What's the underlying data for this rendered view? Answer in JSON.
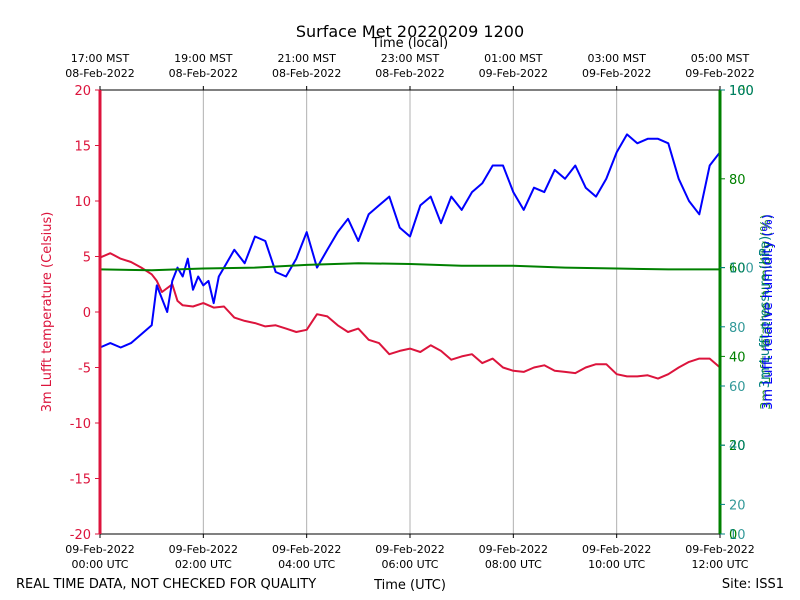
{
  "chart_data": {
    "type": "line",
    "title": "Surface Met 20220209 1200",
    "top_axis_label": "Time (local)",
    "xlabel": "Time (UTC)",
    "footer_left": "REAL TIME DATA, NOT CHECKED FOR QUALITY",
    "footer_right": "Site: ISS1",
    "x_range_hours_utc": [
      0,
      12
    ],
    "bottom_ticks": [
      {
        "hour": 0,
        "line1": "09-Feb-2022",
        "line2": "00:00 UTC"
      },
      {
        "hour": 2,
        "line1": "09-Feb-2022",
        "line2": "02:00 UTC"
      },
      {
        "hour": 4,
        "line1": "09-Feb-2022",
        "line2": "04:00 UTC"
      },
      {
        "hour": 6,
        "line1": "09-Feb-2022",
        "line2": "06:00 UTC"
      },
      {
        "hour": 8,
        "line1": "09-Feb-2022",
        "line2": "08:00 UTC"
      },
      {
        "hour": 10,
        "line1": "09-Feb-2022",
        "line2": "10:00 UTC"
      },
      {
        "hour": 12,
        "line1": "09-Feb-2022",
        "line2": "12:00 UTC"
      }
    ],
    "top_ticks": [
      {
        "hour": 0,
        "line1": "17:00 MST",
        "line2": "08-Feb-2022"
      },
      {
        "hour": 2,
        "line1": "19:00 MST",
        "line2": "08-Feb-2022"
      },
      {
        "hour": 4,
        "line1": "21:00 MST",
        "line2": "08-Feb-2022"
      },
      {
        "hour": 6,
        "line1": "23:00 MST",
        "line2": "08-Feb-2022"
      },
      {
        "hour": 8,
        "line1": "01:00 MST",
        "line2": "09-Feb-2022"
      },
      {
        "hour": 10,
        "line1": "03:00 MST",
        "line2": "09-Feb-2022"
      },
      {
        "hour": 12,
        "line1": "05:00 MST",
        "line2": "09-Feb-2022"
      }
    ],
    "grid": true,
    "y_left": {
      "label": "3m Lufft temperature (Celsius)",
      "color": "#dc143c",
      "range": [
        -20,
        20
      ],
      "ticks": [
        -20,
        -15,
        -10,
        -5,
        0,
        5,
        10,
        15,
        20
      ]
    },
    "y_right_green": {
      "color": "#008000",
      "range": [
        0,
        100
      ],
      "ticks": [
        0,
        20,
        40,
        60,
        80,
        100
      ],
      "label": "3m Lufft relative humidity (%)"
    },
    "y_right_teal": {
      "color": "#008080",
      "range": [
        10,
        160
      ],
      "ticks": [
        10,
        20,
        40,
        60,
        80,
        100,
        160
      ],
      "label": "3m Lufft pressure (hPa)"
    },
    "y_right_blue": {
      "color": "#0000ff",
      "range": [
        0,
        100
      ],
      "label": "3m Lufft relative humidity (%)"
    },
    "series": [
      {
        "color": "#dc143c",
        "axis": "left",
        "x": [
          0,
          0.2,
          0.4,
          0.6,
          0.8,
          1.0,
          1.1,
          1.2,
          1.4,
          1.5,
          1.6,
          1.8,
          2.0,
          2.2,
          2.4,
          2.6,
          2.8,
          3.0,
          3.2,
          3.4,
          3.6,
          3.8,
          4.0,
          4.2,
          4.4,
          4.6,
          4.8,
          5.0,
          5.2,
          5.4,
          5.6,
          5.8,
          6.0,
          6.2,
          6.4,
          6.6,
          6.8,
          7.0,
          7.2,
          7.4,
          7.6,
          7.8,
          8.0,
          8.2,
          8.4,
          8.6,
          8.8,
          9.0,
          9.2,
          9.4,
          9.6,
          9.8,
          10.0,
          10.2,
          10.4,
          10.6,
          10.8,
          11.0,
          11.2,
          11.4,
          11.6,
          11.8,
          12.0
        ],
        "y": [
          4.9,
          5.3,
          4.8,
          4.5,
          4.0,
          3.4,
          2.8,
          1.8,
          2.5,
          1.0,
          0.6,
          0.5,
          0.8,
          0.4,
          0.5,
          -0.5,
          -0.8,
          -1.0,
          -1.3,
          -1.2,
          -1.5,
          -1.8,
          -1.6,
          -0.2,
          -0.4,
          -1.2,
          -1.8,
          -1.5,
          -2.5,
          -2.8,
          -3.8,
          -3.5,
          -3.3,
          -3.6,
          -3.0,
          -3.5,
          -4.3,
          -4.0,
          -3.8,
          -4.6,
          -4.2,
          -5.0,
          -5.3,
          -5.4,
          -5.0,
          -4.8,
          -5.3,
          -5.4,
          -5.5,
          -5.0,
          -4.7,
          -4.7,
          -5.6,
          -5.8,
          -5.8,
          -5.7,
          -6.0,
          -5.6,
          -5.0,
          -4.5,
          -4.2,
          -4.2,
          -5.0
        ]
      },
      {
        "color": "#0000ff",
        "axis": "right_blue",
        "x": [
          0,
          0.2,
          0.4,
          0.6,
          0.8,
          1.0,
          1.1,
          1.2,
          1.3,
          1.4,
          1.5,
          1.6,
          1.7,
          1.8,
          1.9,
          2.0,
          2.1,
          2.2,
          2.3,
          2.4,
          2.6,
          2.8,
          3.0,
          3.2,
          3.4,
          3.6,
          3.8,
          4.0,
          4.2,
          4.4,
          4.6,
          4.8,
          5.0,
          5.2,
          5.4,
          5.6,
          5.8,
          6.0,
          6.2,
          6.4,
          6.6,
          6.8,
          7.0,
          7.2,
          7.4,
          7.6,
          7.8,
          8.0,
          8.2,
          8.4,
          8.6,
          8.8,
          9.0,
          9.2,
          9.4,
          9.6,
          9.8,
          10.0,
          10.2,
          10.4,
          10.6,
          10.8,
          11.0,
          11.2,
          11.4,
          11.6,
          11.8,
          12.0
        ],
        "y": [
          42,
          43,
          42,
          43,
          45,
          47,
          56,
          53,
          50,
          57,
          60,
          58,
          62,
          55,
          58,
          56,
          57,
          52,
          58,
          60,
          64,
          61,
          67,
          66,
          59,
          58,
          62,
          68,
          60,
          64,
          68,
          71,
          66,
          72,
          74,
          76,
          69,
          67,
          74,
          76,
          70,
          76,
          73,
          77,
          79,
          83,
          83,
          77,
          73,
          78,
          77,
          82,
          80,
          83,
          78,
          76,
          80,
          86,
          90,
          88,
          89,
          89,
          88,
          80,
          75,
          72,
          83,
          86
        ]
      },
      {
        "color": "#008000",
        "axis": "right_green",
        "x": [
          0,
          1,
          2,
          3,
          4,
          5,
          6,
          7,
          8,
          9,
          10,
          11,
          12
        ],
        "y": [
          59.6,
          59.4,
          59.8,
          60.0,
          60.6,
          61.0,
          60.8,
          60.4,
          60.4,
          60.0,
          59.8,
          59.6,
          59.6
        ]
      }
    ]
  }
}
